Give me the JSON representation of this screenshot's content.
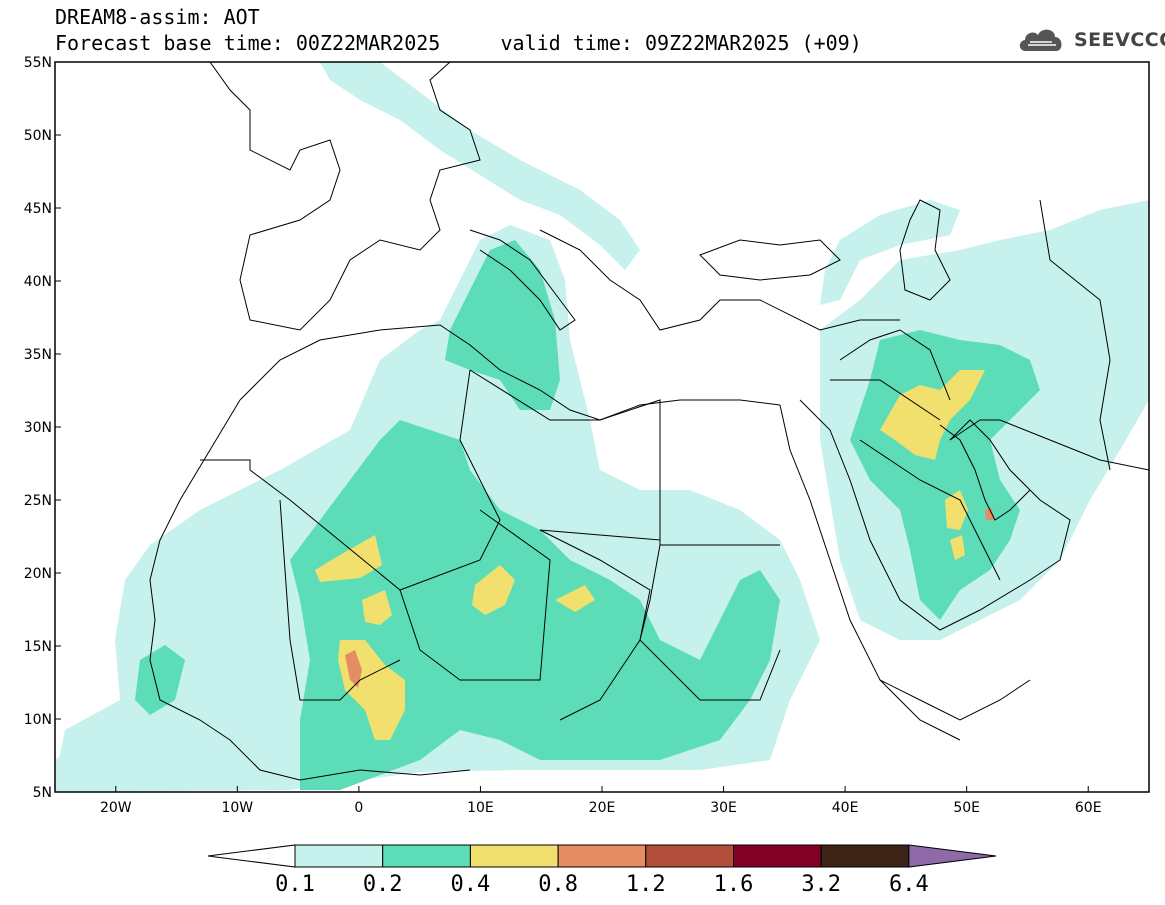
{
  "header": {
    "line1": "DREAM8-assim: AOT",
    "line2": "Forecast base time: 00Z22MAR2025     valid time: 09Z22MAR2025 (+09)"
  },
  "logo": {
    "text": "SEEVCCC",
    "icon": "cloud-logo-icon"
  },
  "map": {
    "lon_range": [
      -25,
      65
    ],
    "lat_range": [
      5,
      55
    ],
    "x_ticks": [
      {
        "lon": -20,
        "label": "20W"
      },
      {
        "lon": -10,
        "label": "10W"
      },
      {
        "lon": 0,
        "label": "0"
      },
      {
        "lon": 10,
        "label": "10E"
      },
      {
        "lon": 20,
        "label": "20E"
      },
      {
        "lon": 30,
        "label": "30E"
      },
      {
        "lon": 40,
        "label": "40E"
      },
      {
        "lon": 50,
        "label": "50E"
      },
      {
        "lon": 60,
        "label": "60E"
      }
    ],
    "y_ticks": [
      {
        "lat": 55,
        "label": "55N"
      },
      {
        "lat": 50,
        "label": "50N"
      },
      {
        "lat": 45,
        "label": "45N"
      },
      {
        "lat": 40,
        "label": "40N"
      },
      {
        "lat": 35,
        "label": "35N"
      },
      {
        "lat": 30,
        "label": "30N"
      },
      {
        "lat": 25,
        "label": "25N"
      },
      {
        "lat": 20,
        "label": "20N"
      },
      {
        "lat": 15,
        "label": "15N"
      },
      {
        "lat": 10,
        "label": "10N"
      },
      {
        "lat": 5,
        "label": "5N"
      }
    ]
  },
  "colorbar": {
    "levels": [
      "0.1",
      "0.2",
      "0.4",
      "0.8",
      "1.2",
      "1.6",
      "3.2",
      "6.4"
    ],
    "colors": [
      "#ffffff",
      "#c6f1ec",
      "#5cddb8",
      "#f2e06e",
      "#e48c62",
      "#b34e3c",
      "#800026",
      "#3d2416",
      "#8f6aa8"
    ]
  },
  "dust_colors": {
    "c1": "#c6f1ec",
    "c2": "#5cddb8",
    "c3": "#f2e06e",
    "c4": "#e48c62"
  }
}
